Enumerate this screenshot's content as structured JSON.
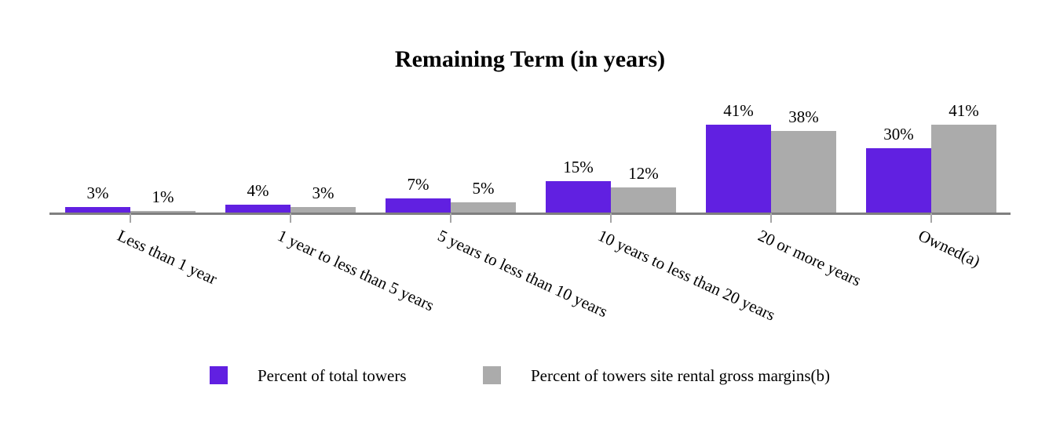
{
  "title": "Remaining Term (in years)",
  "colors": {
    "series1": "#6120E1",
    "series2": "#ABABAB",
    "axis": "#7F7F7F",
    "tick": "#A6A6A6",
    "text": "#000000"
  },
  "chart_data": {
    "type": "bar",
    "title": "Remaining Term (in years)",
    "categories": [
      "Less than 1 year",
      "1 year to less than 5 years",
      "5 years to less than 10 years",
      "10 years to less than 20 years",
      "20 or more years",
      "Owned(a)"
    ],
    "series": [
      {
        "name": "Percent of total towers",
        "color": "#6120E1",
        "values": [
          3,
          4,
          7,
          15,
          41,
          30
        ],
        "data_labels": [
          "3%",
          "4%",
          "7%",
          "15%",
          "41%",
          "30%"
        ]
      },
      {
        "name": "Percent of towers site rental gross margins(b)",
        "color": "#ABABAB",
        "values": [
          1,
          3,
          5,
          12,
          38,
          41
        ],
        "data_labels": [
          "1%",
          "3%",
          "5%",
          "12%",
          "38%",
          "41%"
        ]
      }
    ],
    "ylim": [
      0,
      45
    ],
    "y_axis_visible": false,
    "grid": false,
    "data_labels_shown": true,
    "legend_position": "bottom"
  },
  "legend": {
    "item1": "Percent of total towers",
    "item2": "Percent of towers site rental gross margins(b)"
  }
}
